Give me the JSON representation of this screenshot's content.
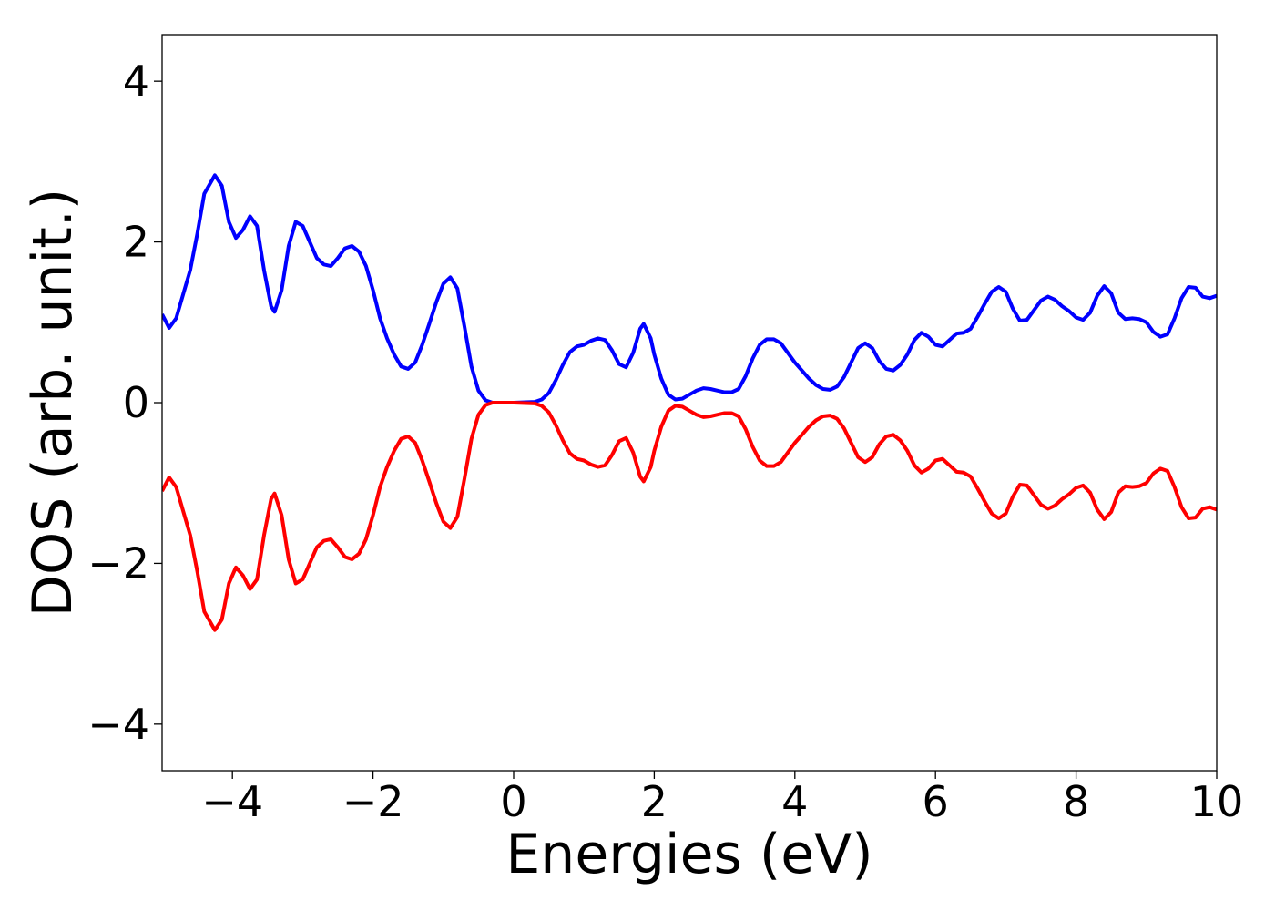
{
  "chart_data": {
    "type": "line",
    "xlabel": "Energies (eV)",
    "ylabel": "DOS (arb. unit.)",
    "xlim": [
      -5,
      10
    ],
    "ylim": [
      -4.58,
      4.58
    ],
    "xticks": [
      {
        "value": -4,
        "label": "−4"
      },
      {
        "value": -2,
        "label": "−2"
      },
      0,
      2,
      4,
      6,
      8,
      10
    ],
    "yticks": [
      {
        "value": -4,
        "label": "−4"
      },
      {
        "value": -2,
        "label": "−2"
      },
      0,
      2,
      4
    ],
    "x": [
      -5,
      -4.9,
      -4.8,
      -4.7,
      -4.6,
      -4.5,
      -4.4,
      -4.25,
      -4.15,
      -4.05,
      -3.95,
      -3.85,
      -3.75,
      -3.65,
      -3.55,
      -3.45,
      -3.4,
      -3.3,
      -3.2,
      -3.1,
      -3.0,
      -2.9,
      -2.8,
      -2.7,
      -2.6,
      -2.5,
      -2.4,
      -2.3,
      -2.2,
      -2.1,
      -2.0,
      -1.9,
      -1.8,
      -1.7,
      -1.6,
      -1.5,
      -1.4,
      -1.3,
      -1.2,
      -1.1,
      -1.0,
      -0.9,
      -0.8,
      -0.7,
      -0.6,
      -0.5,
      -0.4,
      -0.3,
      0,
      0.3,
      0.4,
      0.5,
      0.6,
      0.7,
      0.8,
      0.9,
      1.0,
      1.1,
      1.2,
      1.3,
      1.4,
      1.5,
      1.6,
      1.7,
      1.8,
      1.85,
      1.95,
      2.0,
      2.1,
      2.2,
      2.3,
      2.4,
      2.5,
      2.6,
      2.7,
      2.8,
      2.9,
      3.0,
      3.1,
      3.2,
      3.3,
      3.4,
      3.5,
      3.6,
      3.7,
      3.8,
      3.9,
      4.0,
      4.1,
      4.2,
      4.3,
      4.4,
      4.5,
      4.6,
      4.7,
      4.8,
      4.9,
      5.0,
      5.1,
      5.2,
      5.3,
      5.4,
      5.5,
      5.6,
      5.7,
      5.8,
      5.9,
      6.0,
      6.1,
      6.2,
      6.3,
      6.4,
      6.5,
      6.6,
      6.7,
      6.8,
      6.9,
      7.0,
      7.1,
      7.2,
      7.3,
      7.4,
      7.5,
      7.6,
      7.7,
      7.8,
      7.9,
      8.0,
      8.1,
      8.2,
      8.3,
      8.4,
      8.5,
      8.6,
      8.7,
      8.8,
      8.9,
      9.0,
      9.1,
      9.2,
      9.3,
      9.4,
      9.5,
      9.6,
      9.7,
      9.8,
      9.9,
      10.0
    ],
    "series": [
      {
        "color": "#0000ff",
        "values": [
          1.1,
          0.93,
          1.05,
          1.35,
          1.65,
          2.1,
          2.6,
          2.83,
          2.7,
          2.25,
          2.05,
          2.15,
          2.32,
          2.2,
          1.65,
          1.2,
          1.13,
          1.4,
          1.95,
          2.25,
          2.2,
          2.0,
          1.8,
          1.72,
          1.7,
          1.8,
          1.92,
          1.95,
          1.88,
          1.7,
          1.4,
          1.05,
          0.8,
          0.6,
          0.45,
          0.42,
          0.5,
          0.72,
          0.98,
          1.25,
          1.48,
          1.56,
          1.42,
          0.95,
          0.45,
          0.15,
          0.03,
          0.0,
          0,
          0.01,
          0.04,
          0.12,
          0.28,
          0.47,
          0.63,
          0.7,
          0.72,
          0.77,
          0.8,
          0.78,
          0.65,
          0.48,
          0.44,
          0.62,
          0.92,
          0.98,
          0.8,
          0.6,
          0.3,
          0.1,
          0.04,
          0.05,
          0.1,
          0.15,
          0.18,
          0.17,
          0.15,
          0.13,
          0.13,
          0.17,
          0.33,
          0.55,
          0.72,
          0.79,
          0.79,
          0.74,
          0.62,
          0.5,
          0.4,
          0.3,
          0.22,
          0.17,
          0.16,
          0.2,
          0.32,
          0.5,
          0.68,
          0.74,
          0.68,
          0.52,
          0.42,
          0.4,
          0.47,
          0.6,
          0.78,
          0.87,
          0.82,
          0.72,
          0.7,
          0.78,
          0.86,
          0.87,
          0.92,
          1.07,
          1.23,
          1.38,
          1.44,
          1.38,
          1.17,
          1.02,
          1.03,
          1.15,
          1.27,
          1.32,
          1.28,
          1.2,
          1.14,
          1.06,
          1.03,
          1.12,
          1.33,
          1.45,
          1.36,
          1.12,
          1.04,
          1.05,
          1.04,
          1.0,
          0.88,
          0.82,
          0.85,
          1.05,
          1.3,
          1.44,
          1.43,
          1.32,
          1.3,
          1.33
        ]
      },
      {
        "color": "#ff0000",
        "values": [
          -1.1,
          -0.93,
          -1.05,
          -1.35,
          -1.65,
          -2.1,
          -2.6,
          -2.83,
          -2.7,
          -2.25,
          -2.05,
          -2.15,
          -2.32,
          -2.2,
          -1.65,
          -1.2,
          -1.13,
          -1.4,
          -1.95,
          -2.25,
          -2.2,
          -2.0,
          -1.8,
          -1.72,
          -1.7,
          -1.8,
          -1.92,
          -1.95,
          -1.88,
          -1.7,
          -1.4,
          -1.05,
          -0.8,
          -0.6,
          -0.45,
          -0.42,
          -0.5,
          -0.72,
          -0.98,
          -1.25,
          -1.48,
          -1.56,
          -1.42,
          -0.95,
          -0.45,
          -0.15,
          -0.03,
          0.0,
          0,
          -0.01,
          -0.04,
          -0.12,
          -0.28,
          -0.47,
          -0.63,
          -0.7,
          -0.72,
          -0.77,
          -0.8,
          -0.78,
          -0.65,
          -0.48,
          -0.44,
          -0.62,
          -0.92,
          -0.98,
          -0.8,
          -0.6,
          -0.3,
          -0.1,
          -0.04,
          -0.05,
          -0.1,
          -0.15,
          -0.18,
          -0.17,
          -0.15,
          -0.13,
          -0.13,
          -0.17,
          -0.33,
          -0.55,
          -0.72,
          -0.79,
          -0.79,
          -0.74,
          -0.62,
          -0.5,
          -0.4,
          -0.3,
          -0.22,
          -0.17,
          -0.16,
          -0.2,
          -0.32,
          -0.5,
          -0.68,
          -0.74,
          -0.68,
          -0.52,
          -0.42,
          -0.4,
          -0.47,
          -0.6,
          -0.78,
          -0.87,
          -0.82,
          -0.72,
          -0.7,
          -0.78,
          -0.86,
          -0.87,
          -0.92,
          -1.07,
          -1.23,
          -1.38,
          -1.44,
          -1.38,
          -1.17,
          -1.02,
          -1.03,
          -1.15,
          -1.27,
          -1.32,
          -1.28,
          -1.2,
          -1.14,
          -1.06,
          -1.03,
          -1.12,
          -1.33,
          -1.45,
          -1.36,
          -1.12,
          -1.04,
          -1.05,
          -1.04,
          -1.0,
          -0.88,
          -0.82,
          -0.85,
          -1.05,
          -1.3,
          -1.44,
          -1.43,
          -1.32,
          -1.3,
          -1.33
        ]
      }
    ]
  }
}
